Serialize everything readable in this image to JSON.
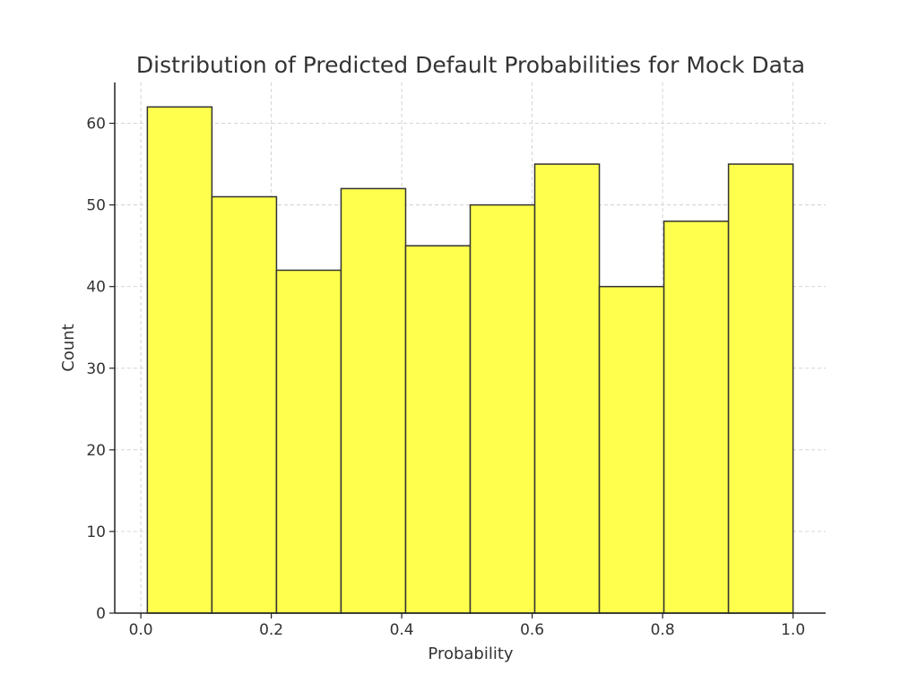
{
  "chart_data": {
    "type": "bar",
    "title": "Distribution of Predicted Default Probabilities for Mock Data",
    "xlabel": "Probability",
    "ylabel": "Count",
    "bins": [
      [
        0.01,
        0.109
      ],
      [
        0.109,
        0.208
      ],
      [
        0.208,
        0.307
      ],
      [
        0.307,
        0.406
      ],
      [
        0.406,
        0.505
      ],
      [
        0.505,
        0.604
      ],
      [
        0.604,
        0.703
      ],
      [
        0.703,
        0.802
      ],
      [
        0.802,
        0.901
      ],
      [
        0.901,
        1.0
      ]
    ],
    "values": [
      62,
      51,
      42,
      52,
      45,
      50,
      55,
      40,
      48,
      55
    ],
    "xlim": [
      -0.04,
      1.05
    ],
    "ylim": [
      0,
      65
    ],
    "xticks": [
      0.0,
      0.2,
      0.4,
      0.6,
      0.8,
      1.0
    ],
    "xtick_labels": [
      "0.0",
      "0.2",
      "0.4",
      "0.6",
      "0.8",
      "1.0"
    ],
    "yticks": [
      0,
      10,
      20,
      30,
      40,
      50,
      60
    ],
    "ytick_labels": [
      "0",
      "10",
      "20",
      "30",
      "40",
      "50",
      "60"
    ],
    "grid": true,
    "bar_color": "#ffff4d",
    "edge_color": "#333333"
  }
}
